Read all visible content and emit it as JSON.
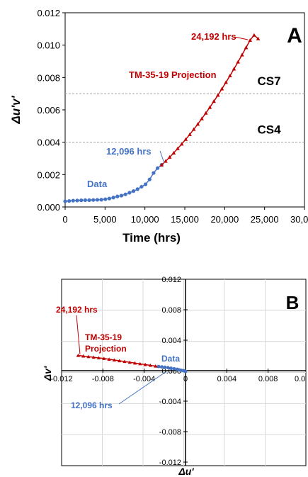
{
  "chart_data": [
    {
      "type": "line",
      "panel_label": "A",
      "xlabel": "Time (hrs)",
      "ylabel": "Δu'v'",
      "xlim": [
        0,
        30000
      ],
      "ylim": [
        0,
        0.012
      ],
      "x_tick_labels": [
        "0",
        "5,000",
        "10,000",
        "15,000",
        "20,000",
        "25,000",
        "30,0"
      ],
      "y_tick_labels": [
        "0.000",
        "0.002",
        "0.004",
        "0.006",
        "0.008",
        "0.010",
        "0.012"
      ],
      "thresholds": [
        {
          "name": "CS7",
          "value": 0.007
        },
        {
          "name": "CS4",
          "value": 0.004
        }
      ],
      "annotations": [
        "24,192 hrs",
        "12,096 hrs"
      ],
      "series": [
        {
          "name": "Data",
          "color": "#4472C4",
          "marker": "circle",
          "x": [
            0,
            504,
            1008,
            1512,
            2016,
            2520,
            3024,
            3528,
            4032,
            4536,
            5040,
            5544,
            6048,
            6552,
            7056,
            7560,
            8064,
            8568,
            9072,
            9576,
            10080,
            10584,
            11088,
            11592,
            12096
          ],
          "y": [
            0.00035,
            0.00037,
            0.00039,
            0.0004,
            0.00041,
            0.00042,
            0.00042,
            0.00043,
            0.00044,
            0.00045,
            0.00048,
            0.00052,
            0.00058,
            0.00065,
            0.0007,
            0.00078,
            0.00088,
            0.00098,
            0.0011,
            0.00125,
            0.0014,
            0.0017,
            0.0021,
            0.0024,
            0.0026
          ]
        },
        {
          "name": "TM-35-19 Projection",
          "color": "#C00000",
          "marker": "triangle",
          "x": [
            12096,
            12600,
            13104,
            13608,
            14112,
            14616,
            15120,
            15624,
            16128,
            16632,
            17136,
            17640,
            18144,
            18648,
            19152,
            19656,
            20160,
            20664,
            21168,
            21672,
            22176,
            22680,
            23184,
            23688,
            24192
          ],
          "y": [
            0.0026,
            0.00283,
            0.00308,
            0.00334,
            0.00361,
            0.00389,
            0.00418,
            0.00448,
            0.0048,
            0.00512,
            0.00546,
            0.0058,
            0.00616,
            0.00653,
            0.00691,
            0.0073,
            0.0077,
            0.00811,
            0.00853,
            0.00896,
            0.0094,
            0.00985,
            0.0103,
            0.01062,
            0.0104
          ]
        }
      ]
    },
    {
      "type": "scatter",
      "panel_label": "B",
      "xlabel": "Δu'",
      "ylabel": "Δv'",
      "xlim": [
        -0.012,
        0.012
      ],
      "ylim": [
        -0.012,
        0.012
      ],
      "x_tick_labels": [
        "-0.012",
        "-0.008",
        "-0.004",
        "0",
        "0.004",
        "0.008",
        "0.0"
      ],
      "y_tick_labels": [
        "0.012",
        "0.008",
        "0.004",
        "0.000",
        "-0.004",
        "-0.008",
        "-0.012"
      ],
      "annotations": [
        "24,192 hrs",
        "12,096 hrs"
      ],
      "series": [
        {
          "name": "TM-35-19 Projection",
          "color": "#C00000",
          "marker": "triangle",
          "x": [
            -0.0104,
            -0.0099,
            -0.0094,
            -0.0089,
            -0.0084,
            -0.0079,
            -0.0074,
            -0.0069,
            -0.0064,
            -0.0059,
            -0.0054,
            -0.0049,
            -0.0044,
            -0.0039,
            -0.0034,
            -0.0029,
            -0.0026
          ],
          "y": [
            0.002,
            0.00192,
            0.00184,
            0.00176,
            0.00168,
            0.0016,
            0.0015,
            0.0014,
            0.0013,
            0.0012,
            0.0011,
            0.001,
            0.0009,
            0.0008,
            0.0007,
            0.0006,
            0.00055
          ]
        },
        {
          "name": "Data",
          "color": "#4472C4",
          "marker": "circle",
          "x": [
            -0.0026,
            -0.0023,
            -0.002,
            -0.0017,
            -0.0014,
            -0.0011,
            -0.0008,
            -0.0006,
            -0.0004,
            -0.0002,
            0.0
          ],
          "y": [
            0.00055,
            0.0005,
            0.00045,
            0.0004,
            0.00032,
            0.00025,
            0.00018,
            0.0001,
            5e-05,
            0.0,
            -0.0001
          ]
        }
      ]
    }
  ]
}
